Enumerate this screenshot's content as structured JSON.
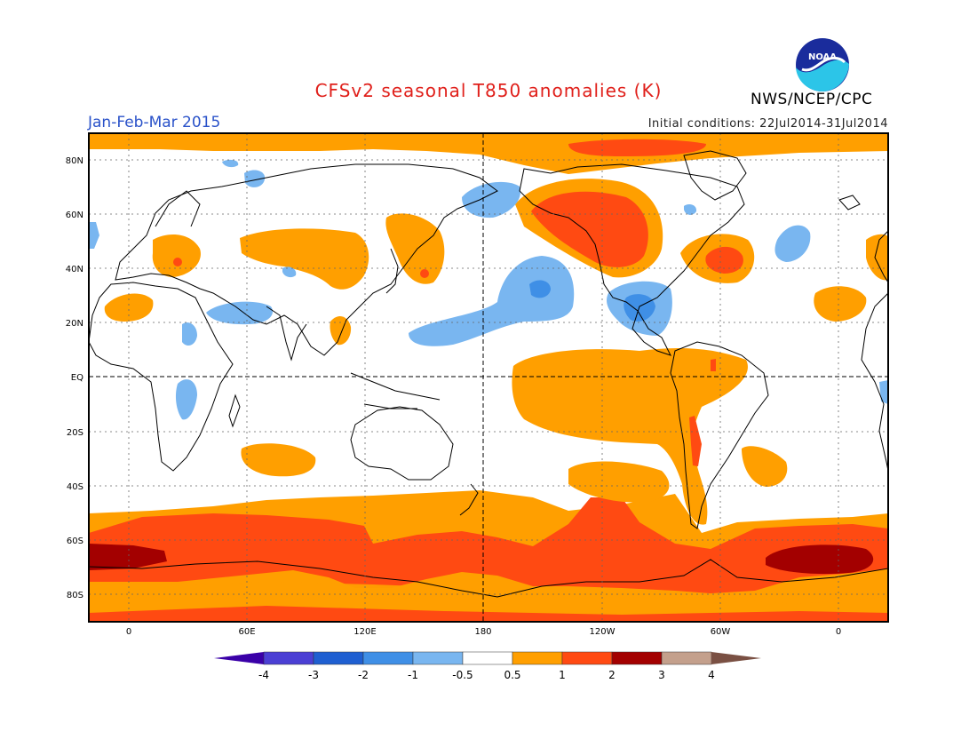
{
  "title": "CFSv2 seasonal T850 anomalies (K)",
  "period": "Jan-Feb-Mar 2015",
  "initial_conditions": "Initial conditions: 22Jul2014-31Jul2014",
  "agency": "NWS/NCEP/CPC",
  "logo_text": "NOAA",
  "lat_labels": [
    "80N",
    "60N",
    "40N",
    "20N",
    "EQ",
    "20S",
    "40S",
    "60S",
    "80S"
  ],
  "lon_labels": [
    "0",
    "60E",
    "120E",
    "180",
    "120W",
    "60W",
    "0"
  ],
  "colorbar": {
    "labels": [
      "-4",
      "-3",
      "-2",
      "-1",
      "-0.5",
      "0.5",
      "1",
      "2",
      "3",
      "4"
    ],
    "colors": [
      "#3a00a8",
      "#4b3fd4",
      "#1f5fd1",
      "#3f8fe6",
      "#79b6f0",
      "#ffffff",
      "#ff9f00",
      "#ff4a12",
      "#a30000",
      "#c4a08c",
      "#7a5043"
    ]
  },
  "colors": {
    "warm1": "#ff9f00",
    "warm2": "#ff4a12",
    "warm3": "#a30000",
    "cool1": "#79b6f0",
    "cool2": "#3f8fe6"
  }
}
